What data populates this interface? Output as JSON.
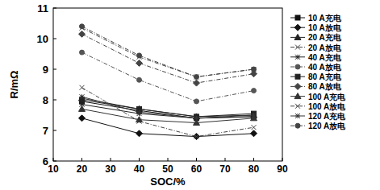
{
  "chart_data": {
    "type": "line",
    "x_label": "SOC/%",
    "y_label": "R/mΩ",
    "x": [
      20,
      40,
      60,
      80
    ],
    "xlim": [
      10,
      90
    ],
    "xticks": [
      10,
      20,
      30,
      40,
      50,
      60,
      70,
      80,
      90
    ],
    "ylim": [
      6,
      11
    ],
    "yticks": [
      6,
      7,
      8,
      9,
      10,
      11
    ],
    "grid": false,
    "legend": "right",
    "series": [
      {
        "name": "10 A充电",
        "color": "#111111",
        "marker": "square",
        "line_style": "solid",
        "values": [
          7.95,
          7.65,
          7.4,
          7.45
        ]
      },
      {
        "name": "10 A放电",
        "color": "#111111",
        "marker": "diamond",
        "line_style": "solid",
        "values": [
          7.4,
          6.9,
          6.8,
          6.9
        ]
      },
      {
        "name": "20 A充电",
        "color": "#222222",
        "marker": "triangle",
        "line_style": "solid",
        "values": [
          8.05,
          7.7,
          7.45,
          7.5
        ]
      },
      {
        "name": "20 A放电",
        "color": "#444444",
        "marker": "cross",
        "line_style": "dashed",
        "values": [
          8.4,
          7.3,
          6.8,
          7.1
        ]
      },
      {
        "name": "40 A充电",
        "color": "#222222",
        "marker": "star",
        "line_style": "solid",
        "values": [
          7.85,
          7.55,
          7.4,
          7.45
        ]
      },
      {
        "name": "40 A放电",
        "color": "#555555",
        "marker": "circle",
        "line_style": "dashed",
        "values": [
          9.55,
          8.65,
          7.95,
          8.3
        ]
      },
      {
        "name": "80 A充电",
        "color": "#222222",
        "marker": "square",
        "line_style": "solid",
        "values": [
          8.0,
          7.7,
          7.45,
          7.55
        ]
      },
      {
        "name": "80 A放电",
        "color": "#444444",
        "marker": "diamond",
        "line_style": "dashed",
        "values": [
          10.15,
          9.2,
          8.55,
          8.85
        ]
      },
      {
        "name": "100 A充电",
        "color": "#333333",
        "marker": "triangle",
        "line_style": "solid",
        "values": [
          7.7,
          7.35,
          7.25,
          7.4
        ]
      },
      {
        "name": "100 A放电",
        "color": "#444444",
        "marker": "cross",
        "line_style": "dashed",
        "values": [
          10.35,
          9.4,
          8.75,
          9.0
        ]
      },
      {
        "name": "120 A充电",
        "color": "#333333",
        "marker": "star",
        "line_style": "solid",
        "values": [
          8.1,
          7.6,
          7.4,
          7.5
        ]
      },
      {
        "name": "120 A放电",
        "color": "#444444",
        "marker": "circle",
        "line_style": "dashed",
        "values": [
          10.4,
          9.45,
          8.75,
          9.0
        ]
      }
    ]
  }
}
